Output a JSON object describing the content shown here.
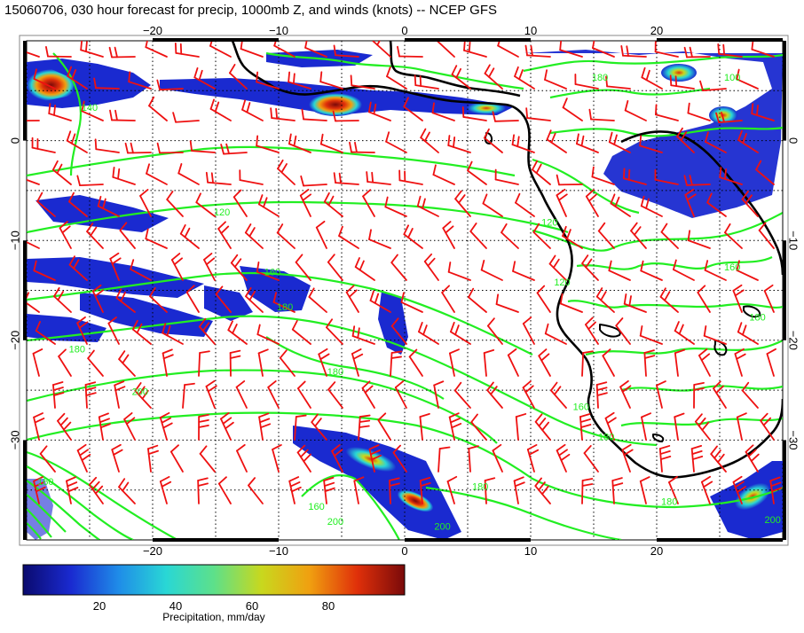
{
  "title": "15060706, 030 hour forecast for precip, 1000mb Z, and winds (knots) -- NCEP GFS",
  "map": {
    "lon_range": [
      -30,
      30
    ],
    "lat_range": [
      -40,
      10
    ],
    "lon_ticks": [
      -20,
      -10,
      0,
      10,
      20
    ],
    "lon_tick_labels": [
      "−20",
      "−10",
      "0",
      "10",
      "20"
    ],
    "lat_ticks": [
      0,
      -10,
      -20,
      -30
    ],
    "lat_tick_labels": [
      "0",
      "−10",
      "−20",
      "−30"
    ],
    "grid_lines": "dotted",
    "colors": {
      "coastline": "#000000",
      "contours": "#22ee22",
      "barbs": "#ee1111"
    }
  },
  "contour_labels": [
    {
      "text": "120",
      "lon": -14.5,
      "lat": -7.5
    },
    {
      "text": "120",
      "lon": 11.5,
      "lat": -8.5
    },
    {
      "text": "120",
      "lon": 12.5,
      "lat": -14.5
    },
    {
      "text": "160",
      "lon": -10.5,
      "lat": -13.5
    },
    {
      "text": "160",
      "lon": 26,
      "lat": -13
    },
    {
      "text": "180",
      "lon": -9.5,
      "lat": -17
    },
    {
      "text": "180",
      "lon": -26,
      "lat": -21.2
    },
    {
      "text": "180",
      "lon": -5.5,
      "lat": -23.5
    },
    {
      "text": "180",
      "lon": 6,
      "lat": -35
    },
    {
      "text": "180",
      "lon": 21,
      "lat": -36.5
    },
    {
      "text": "180",
      "lon": 28,
      "lat": -18
    },
    {
      "text": "200",
      "lon": -21,
      "lat": -25.5
    },
    {
      "text": "200",
      "lon": -5.5,
      "lat": -38.5
    },
    {
      "text": "200",
      "lon": 3,
      "lat": -39
    },
    {
      "text": "160",
      "lon": -28.5,
      "lat": -34.5
    },
    {
      "text": "160",
      "lon": -7,
      "lat": -37
    },
    {
      "text": "160",
      "lon": 14,
      "lat": -27
    },
    {
      "text": "180",
      "lon": 16,
      "lat": -30
    },
    {
      "text": "140",
      "lon": -25,
      "lat": 3
    },
    {
      "text": "100",
      "lon": 26,
      "lat": 6
    },
    {
      "text": "180",
      "lon": 15.5,
      "lat": 6
    },
    {
      "text": "200",
      "lon": 29.2,
      "lat": -38.3
    }
  ],
  "colorbar": {
    "tick_values": [
      20,
      40,
      60,
      80
    ],
    "range": [
      0,
      100
    ],
    "label": "Precipitation, mm/day",
    "stops": [
      "#0a0a6e",
      "#1a2ad0",
      "#1f8ce8",
      "#29d7d5",
      "#5de08a",
      "#c8d81e",
      "#f0a010",
      "#e0300a",
      "#7a0a0a"
    ]
  }
}
